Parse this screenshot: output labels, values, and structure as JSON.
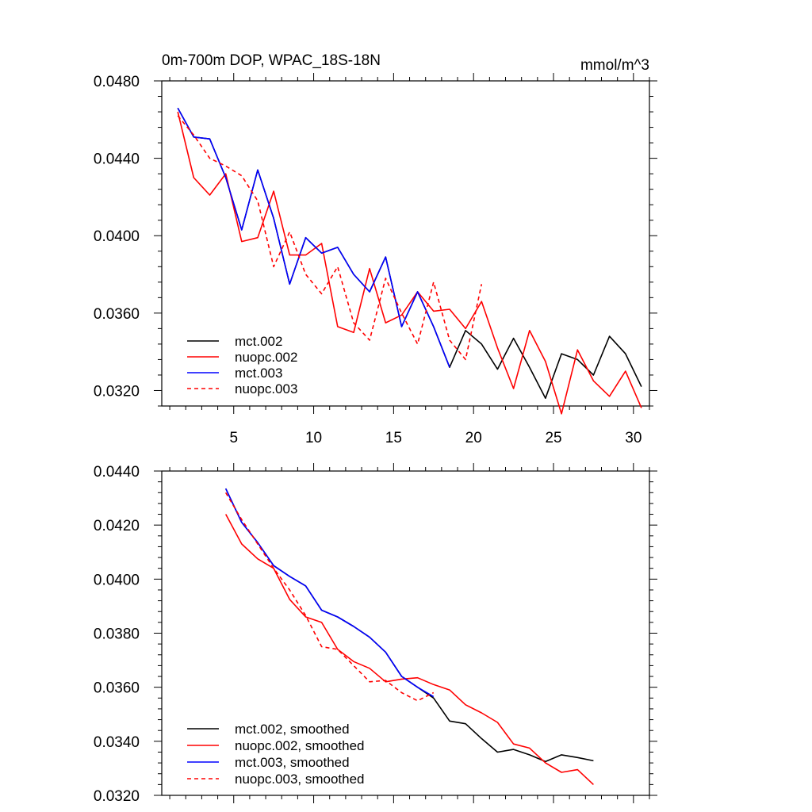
{
  "chart_data": [
    {
      "type": "line",
      "title": "0m-700m DOP, WPAC_18S-18N",
      "units": "mmol/m^3",
      "xlabel": "",
      "ylabel": "",
      "xlim": [
        0.5,
        31
      ],
      "ylim": [
        0.0312,
        0.048
      ],
      "xticks": [
        5,
        10,
        15,
        20,
        25,
        30
      ],
      "yticks": [
        0.032,
        0.036,
        0.04,
        0.044,
        0.048
      ],
      "ytick_labels": [
        "0.0320",
        "0.0360",
        "0.0400",
        "0.0440",
        "0.0480"
      ],
      "legend_position": "bottom-left",
      "series": [
        {
          "name": "mct.002",
          "color": "#000000",
          "dash": "solid",
          "x": [
            1.5,
            2.5,
            3.5,
            4.5,
            5.5,
            6.5,
            7.5,
            8.5,
            9.5,
            10.5,
            11.5,
            12.5,
            13.5,
            14.5,
            15.5,
            16.5,
            17.5,
            18.5,
            19.5,
            20.5,
            21.5,
            22.5,
            23.5,
            24.5,
            25.5,
            26.5,
            27.5,
            28.5,
            29.5,
            30.5
          ],
          "values": [
            0.0466,
            0.0451,
            0.045,
            0.043,
            0.0403,
            0.0434,
            0.0409,
            0.0375,
            0.0399,
            0.0391,
            0.0394,
            0.038,
            0.0371,
            0.0389,
            0.0353,
            0.0371,
            0.0353,
            0.0332,
            0.0351,
            0.0344,
            0.0331,
            0.0347,
            0.0332,
            0.0316,
            0.0339,
            0.0336,
            0.0328,
            0.0348,
            0.0339,
            0.0322
          ]
        },
        {
          "name": "nuopc.002",
          "color": "#ff0000",
          "dash": "solid",
          "x": [
            1.5,
            2.5,
            3.5,
            4.5,
            5.5,
            6.5,
            7.5,
            8.5,
            9.5,
            10.5,
            11.5,
            12.5,
            13.5,
            14.5,
            15.5,
            16.5,
            17.5,
            18.5,
            19.5,
            20.5,
            21.5,
            22.5,
            23.5,
            24.5,
            25.5,
            26.5,
            27.5,
            28.5,
            29.5,
            30.5
          ],
          "values": [
            0.0464,
            0.043,
            0.0421,
            0.0432,
            0.0397,
            0.0399,
            0.0423,
            0.039,
            0.039,
            0.0396,
            0.0353,
            0.035,
            0.0383,
            0.0355,
            0.0359,
            0.0371,
            0.0361,
            0.0362,
            0.0352,
            0.0366,
            0.0342,
            0.0321,
            0.0351,
            0.0335,
            0.0308,
            0.0341,
            0.0325,
            0.0317,
            0.033,
            0.0311
          ]
        },
        {
          "name": "mct.003",
          "color": "#0000ff",
          "dash": "solid",
          "x": [
            1.5,
            2.5,
            3.5,
            4.5,
            5.5,
            6.5,
            7.5,
            8.5,
            9.5,
            10.5,
            11.5,
            12.5,
            13.5,
            14.5,
            15.5,
            16.5,
            17.5,
            18.5
          ],
          "values": [
            0.0466,
            0.0451,
            0.045,
            0.043,
            0.0403,
            0.0434,
            0.0409,
            0.0375,
            0.0399,
            0.0391,
            0.0394,
            0.038,
            0.0371,
            0.0389,
            0.0353,
            0.0371,
            0.0353,
            0.0332
          ]
        },
        {
          "name": "nuopc.003",
          "color": "#ff0000",
          "dash": "dashed",
          "x": [
            1.5,
            2.5,
            3.5,
            4.5,
            5.5,
            6.5,
            7.5,
            8.5,
            9.5,
            10.5,
            11.5,
            12.5,
            13.5,
            14.5,
            15.5,
            16.5,
            17.5,
            18.5,
            19.5,
            20.5
          ],
          "values": [
            0.0462,
            0.0452,
            0.044,
            0.0436,
            0.0431,
            0.0418,
            0.0384,
            0.0402,
            0.038,
            0.037,
            0.0384,
            0.0355,
            0.0346,
            0.0378,
            0.036,
            0.0344,
            0.0376,
            0.0346,
            0.0336,
            0.0375
          ]
        }
      ]
    },
    {
      "type": "line",
      "title": "",
      "xlabel": "",
      "ylabel": "",
      "xlim": [
        0.5,
        31
      ],
      "ylim": [
        0.032,
        0.044
      ],
      "xticks": [
        5,
        10,
        15,
        20,
        25,
        30
      ],
      "yticks": [
        0.032,
        0.034,
        0.036,
        0.038,
        0.04,
        0.042,
        0.044
      ],
      "ytick_labels": [
        "0.0320",
        "0.0340",
        "0.0360",
        "0.0380",
        "0.0400",
        "0.0420",
        "0.0440"
      ],
      "legend_position": "bottom-left",
      "series": [
        {
          "name": "mct.002, smoothed",
          "color": "#000000",
          "dash": "solid",
          "x": [
            4.5,
            5.5,
            6.5,
            7.5,
            8.5,
            9.5,
            10.5,
            11.5,
            12.5,
            13.5,
            14.5,
            15.5,
            16.5,
            17.5,
            18.5,
            19.5,
            20.5,
            21.5,
            22.5,
            23.5,
            24.5,
            25.5,
            26.5,
            27.5
          ],
          "values": [
            0.04335,
            0.0421,
            0.04135,
            0.0405,
            0.0401,
            0.03975,
            0.03885,
            0.0386,
            0.03825,
            0.03785,
            0.0373,
            0.0364,
            0.036,
            0.0356,
            0.03475,
            0.03465,
            0.0341,
            0.0336,
            0.0337,
            0.0335,
            0.03325,
            0.0335,
            0.0334,
            0.03328
          ]
        },
        {
          "name": "nuopc.002, smoothed",
          "color": "#ff0000",
          "dash": "solid",
          "x": [
            4.5,
            5.5,
            6.5,
            7.5,
            8.5,
            9.5,
            10.5,
            11.5,
            12.5,
            13.5,
            14.5,
            15.5,
            16.5,
            17.5,
            18.5,
            19.5,
            20.5,
            21.5,
            22.5,
            23.5,
            24.5,
            25.5,
            26.5,
            27.5
          ],
          "values": [
            0.0424,
            0.0413,
            0.04075,
            0.0404,
            0.03925,
            0.0386,
            0.0384,
            0.0374,
            0.03695,
            0.0367,
            0.0362,
            0.0363,
            0.03635,
            0.0361,
            0.0359,
            0.03535,
            0.03505,
            0.0347,
            0.0339,
            0.03375,
            0.0332,
            0.03285,
            0.03295,
            0.0324
          ]
        },
        {
          "name": "mct.003, smoothed",
          "color": "#0000ff",
          "dash": "solid",
          "x": [
            4.5,
            5.5,
            6.5,
            7.5,
            8.5,
            9.5,
            10.5,
            11.5,
            12.5,
            13.5,
            14.5,
            15.5,
            16.5,
            17.5
          ],
          "values": [
            0.04335,
            0.0421,
            0.04135,
            0.0405,
            0.0401,
            0.03975,
            0.03885,
            0.0386,
            0.03825,
            0.03785,
            0.0373,
            0.0364,
            0.036,
            0.03565
          ]
        },
        {
          "name": "nuopc.003, smoothed",
          "color": "#ff0000",
          "dash": "dashed",
          "x": [
            4.5,
            5.5,
            6.5,
            7.5,
            8.5,
            9.5,
            10.5,
            11.5,
            12.5,
            13.5,
            14.5,
            15.5,
            16.5,
            17.5
          ],
          "values": [
            0.0432,
            0.0422,
            0.0413,
            0.0404,
            0.0396,
            0.03865,
            0.0375,
            0.0374,
            0.0368,
            0.0362,
            0.03625,
            0.0358,
            0.0355,
            0.0358
          ]
        }
      ]
    }
  ]
}
